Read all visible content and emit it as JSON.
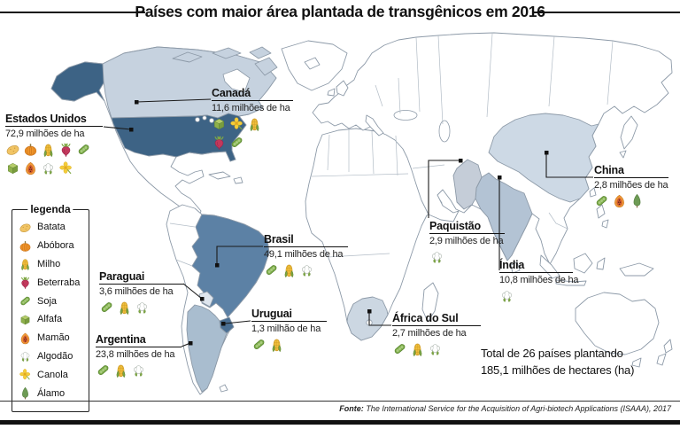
{
  "title": "Países com maior área plantada de transgênicos em 2016",
  "legend": {
    "title": "legenda",
    "items": [
      {
        "id": "batata",
        "label": "Batata"
      },
      {
        "id": "abobora",
        "label": "Abóbora"
      },
      {
        "id": "milho",
        "label": "Milho"
      },
      {
        "id": "beterraba",
        "label": "Beterraba"
      },
      {
        "id": "soja",
        "label": "Soja"
      },
      {
        "id": "alfafa",
        "label": "Alfafa"
      },
      {
        "id": "mamao",
        "label": "Mamão"
      },
      {
        "id": "algodao",
        "label": "Algodão"
      },
      {
        "id": "canola",
        "label": "Canola"
      },
      {
        "id": "alamo",
        "label": "Álamo"
      }
    ]
  },
  "countries": [
    {
      "id": "estados-unidos",
      "name": "Estados Unidos",
      "area": "72,9 milhões de ha",
      "crops": [
        "batata",
        "abobora",
        "milho",
        "beterraba",
        "soja",
        "alfafa",
        "mamao",
        "algodao",
        "canola"
      ]
    },
    {
      "id": "canada",
      "name": "Canadá",
      "area": "11,6 milhões de ha",
      "crops": [
        "alfafa",
        "canola",
        "milho",
        "beterraba",
        "soja"
      ]
    },
    {
      "id": "brasil",
      "name": "Brasil",
      "area": "49,1 milhões de ha",
      "crops": [
        "soja",
        "milho",
        "algodao"
      ]
    },
    {
      "id": "paraguai",
      "name": "Paraguai",
      "area": "3,6 milhões de ha",
      "crops": [
        "soja",
        "milho",
        "algodao"
      ]
    },
    {
      "id": "uruguai",
      "name": "Uruguai",
      "area": "1,3 milhão de ha",
      "crops": [
        "soja",
        "milho"
      ]
    },
    {
      "id": "argentina",
      "name": "Argentina",
      "area": "23,8 milhões de ha",
      "crops": [
        "soja",
        "milho",
        "algodao"
      ]
    },
    {
      "id": "china",
      "name": "China",
      "area": "2,8 milhões de ha",
      "crops": [
        "soja",
        "mamao",
        "alamo"
      ]
    },
    {
      "id": "paquistao",
      "name": "Paquistão",
      "area": "2,9 milhões de ha",
      "crops": [
        "algodao"
      ]
    },
    {
      "id": "india",
      "name": "Índia",
      "area": "10,8 milhões de ha",
      "crops": [
        "algodao"
      ]
    },
    {
      "id": "africa-do-sul",
      "name": "África do Sul",
      "area": "2,7 milhões de ha",
      "crops": [
        "soja",
        "milho",
        "algodao"
      ]
    }
  ],
  "summary": {
    "line1": "Total de 26 países plantando",
    "line2": "185,1 milhões de hectares (ha)"
  },
  "source": {
    "label": "Fonte:",
    "text": "The International Service for the Acquisition of Agri-biotech Applications (ISAAA), 2017"
  },
  "colors": {
    "map_stroke": "#8d9aa8",
    "leader_line": "#1a1a1a",
    "countries": {
      "estados-unidos": "#3d6385",
      "canada": "#c6d2df",
      "brasil": "#5c81a5",
      "paraguai": "#dfe6ee",
      "uruguai": "#4a6f93",
      "argentina": "#a9bdcf",
      "china": "#cdd9e5",
      "paquistao": "#c5cdd8",
      "india": "#b3c3d4",
      "africa-do-sul": "#ccd7e2"
    }
  }
}
